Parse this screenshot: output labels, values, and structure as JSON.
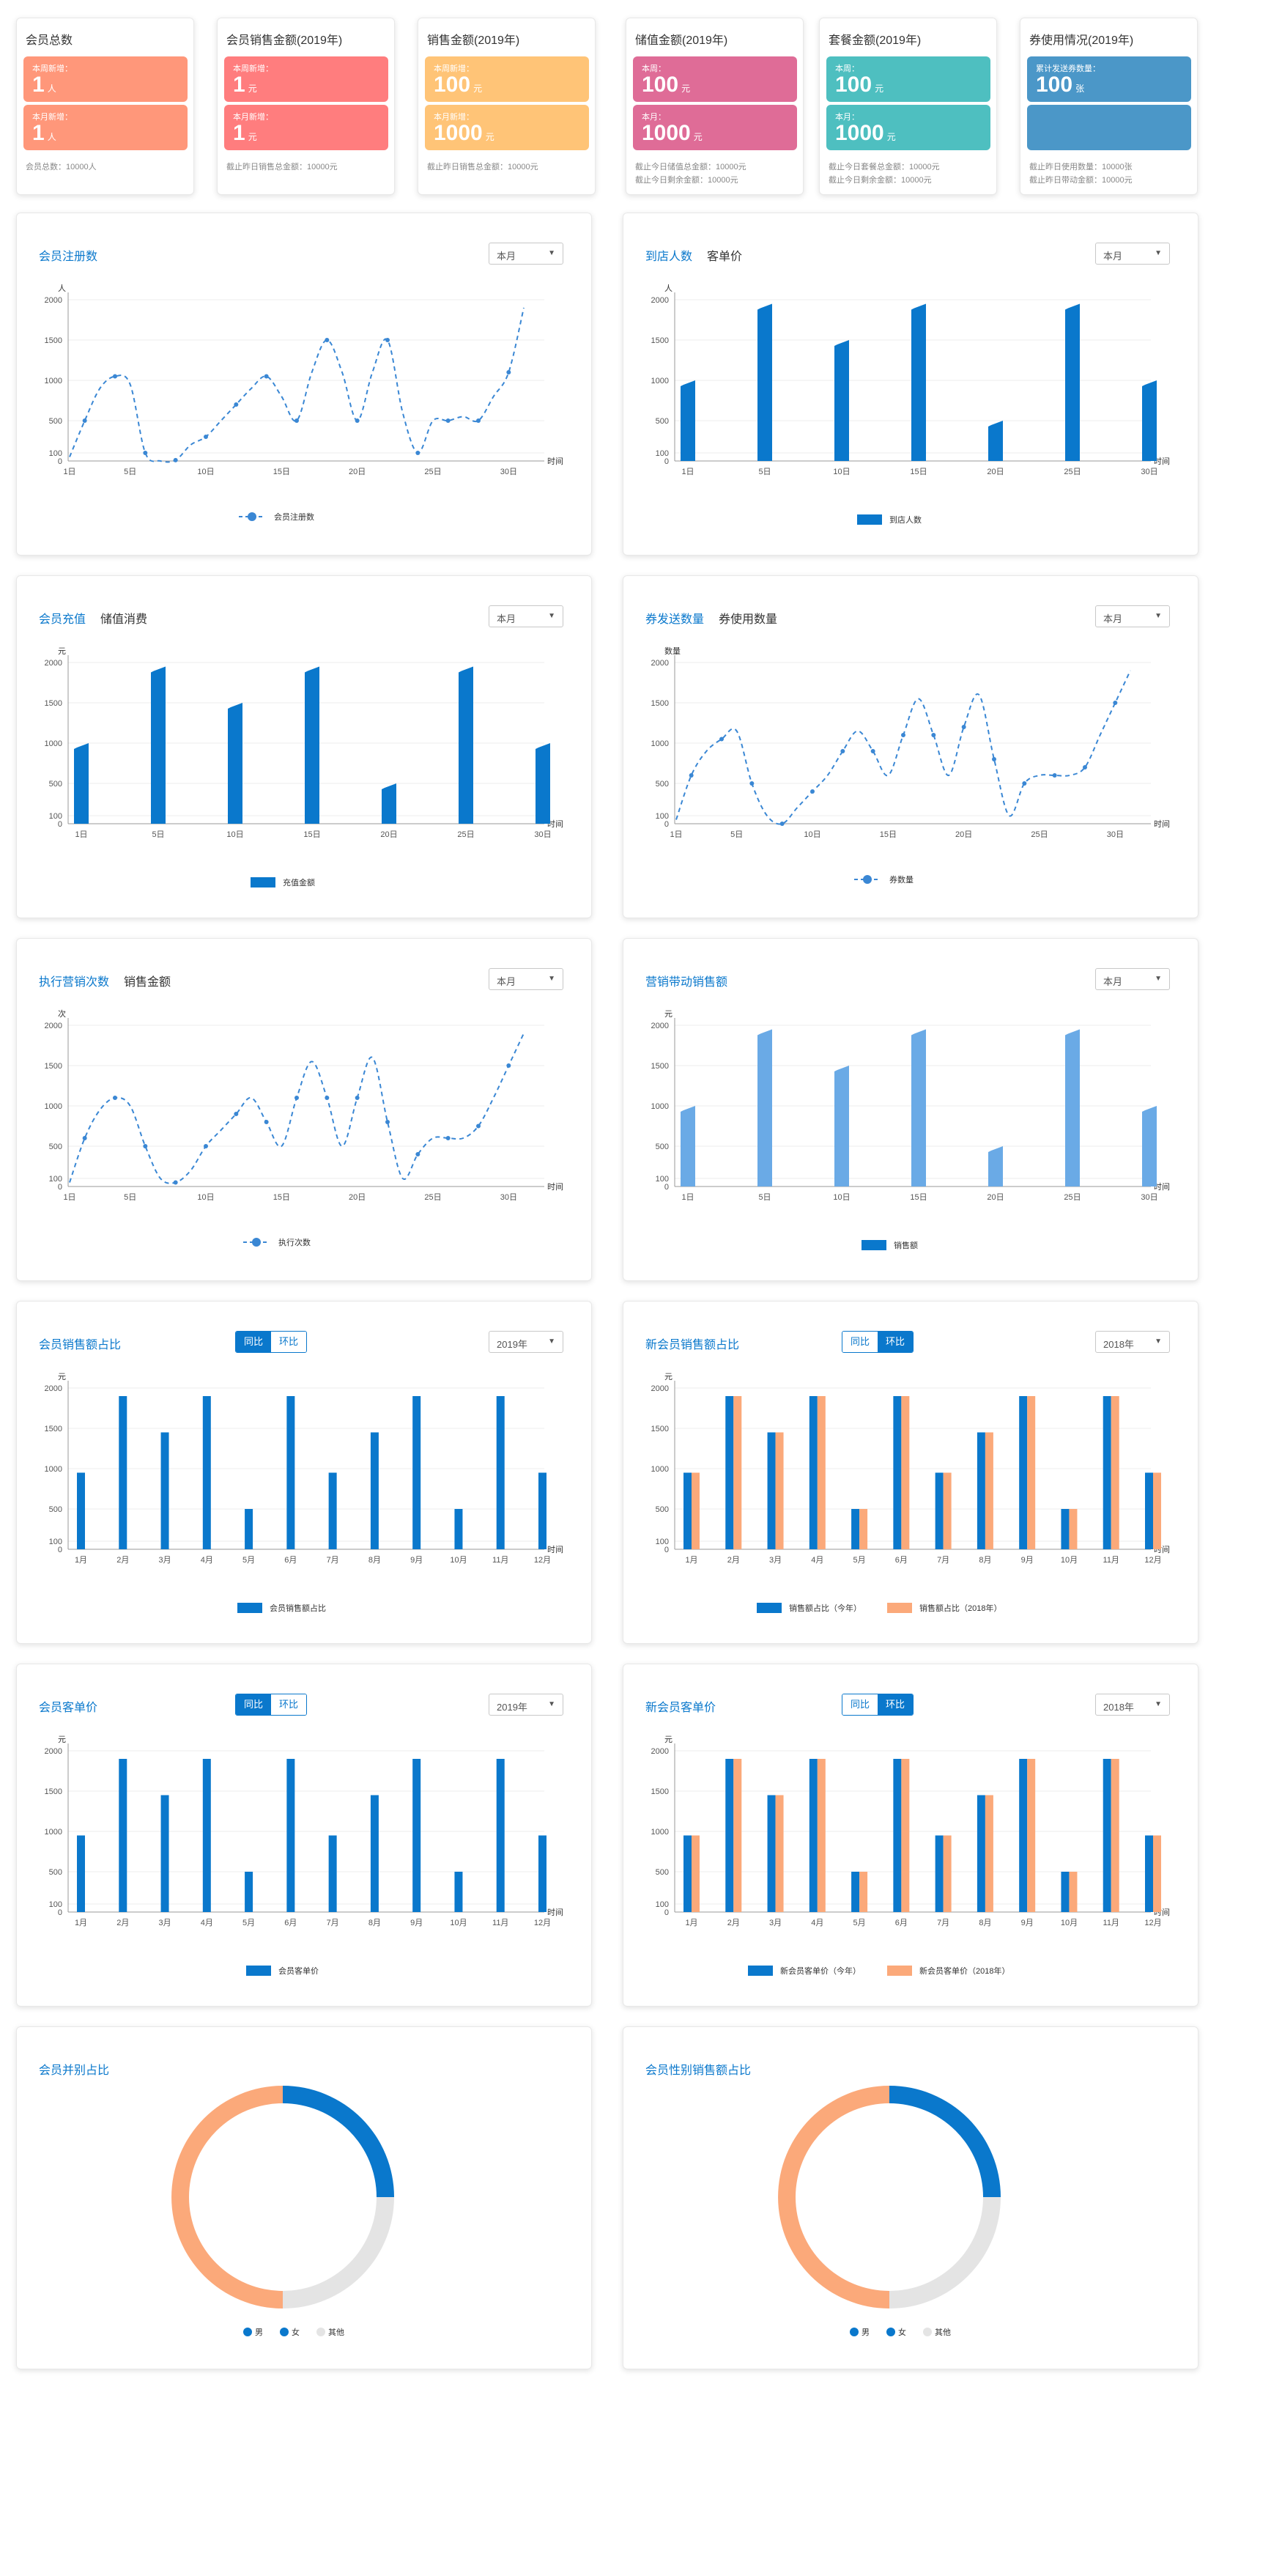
{
  "stats": [
    {
      "title": "会员总数",
      "boxes": [
        {
          "label": "本周新增：",
          "value": "1",
          "unit": "人"
        },
        {
          "label": "本月新增：",
          "value": "1",
          "unit": "人"
        }
      ],
      "footer": [
        "会员总数：10000人"
      ]
    },
    {
      "title": "会员销售金额(2019年)",
      "boxes": [
        {
          "label": "本周新增：",
          "value": "1",
          "unit": "元"
        },
        {
          "label": "本月新增：",
          "value": "1",
          "unit": "元"
        }
      ],
      "footer": [
        "截止昨日销售总金额：10000元"
      ]
    },
    {
      "title": "销售金额(2019年)",
      "boxes": [
        {
          "label": "本周新增：",
          "value": "100",
          "unit": "元"
        },
        {
          "label": "本月新增：",
          "value": "1000",
          "unit": "元"
        }
      ],
      "footer": [
        "截止昨日销售总金额：10000元"
      ]
    },
    {
      "title": "储值金额(2019年)",
      "boxes": [
        {
          "label": "本周：",
          "value": "100",
          "unit": "元"
        },
        {
          "label": "本月：",
          "value": "1000",
          "unit": "元"
        }
      ],
      "footer": [
        "截止今日储值总金额：10000元",
        "截止今日剩余金额：10000元"
      ]
    },
    {
      "title": "套餐金额(2019年)",
      "boxes": [
        {
          "label": "本周：",
          "value": "100",
          "unit": "元"
        },
        {
          "label": "本月：",
          "value": "1000",
          "unit": "元"
        }
      ],
      "footer": [
        "截止今日套餐总金额：10000元",
        "截止今日剩余金额：10000元"
      ]
    },
    {
      "title": "券使用情况(2019年)",
      "boxes": [
        {
          "label": "累计发送券数量：",
          "value": "100",
          "unit": "张"
        },
        {
          "label": "",
          "value": "",
          "unit": ""
        }
      ],
      "footer": [
        "截止昨日使用数量：10000张",
        "截止昨日带动金额：10000元"
      ]
    }
  ],
  "colors": {
    "primary": "#0a78cc",
    "secondary": "#fba97a",
    "line": "#3a87d4",
    "light_bar": "#6aaae6",
    "donut_other": "#e4e4e4"
  },
  "panels": [
    {
      "tabs": [
        "会员注册数"
      ],
      "dropdown": "本月",
      "chart_data": {
        "type": "line",
        "x": [
          "1日",
          "",
          "",
          "",
          "5日",
          "",
          "",
          "",
          "",
          "10日",
          "",
          "",
          "",
          "",
          "15日",
          "",
          "",
          "",
          "",
          "20日",
          "",
          "",
          "",
          "",
          "25日",
          "",
          "",
          "",
          "",
          "30日",
          ""
        ],
        "values": [
          50,
          500,
          900,
          1050,
          950,
          100,
          0,
          10,
          200,
          300,
          500,
          700,
          900,
          1050,
          800,
          500,
          1100,
          1500,
          1100,
          500,
          1100,
          1500,
          600,
          100,
          500,
          500,
          550,
          500,
          800,
          1100,
          1900
        ],
        "ylim": [
          0,
          2000
        ],
        "yticks": [
          0,
          100,
          500,
          1000,
          1500,
          2000
        ],
        "ylabel": "人",
        "xlabel": "时间",
        "legend": [
          "会员注册数"
        ]
      }
    },
    {
      "tabs": [
        "到店人数",
        "客单价"
      ],
      "dropdown": "本月",
      "chart_data": {
        "type": "bar",
        "x": [
          "1日",
          "5日",
          "10日",
          "15日",
          "20日",
          "25日",
          "30日"
        ],
        "values": [
          1000,
          1950,
          1500,
          1950,
          500,
          1950,
          1000
        ],
        "ylim": [
          0,
          2000
        ],
        "yticks": [
          0,
          100,
          500,
          1000,
          1500,
          2000
        ],
        "ylabel": "人",
        "xlabel": "时间",
        "legend": [
          "到店人数"
        ]
      }
    },
    {
      "tabs": [
        "会员充值",
        "储值消费"
      ],
      "dropdown": "本月",
      "chart_data": {
        "type": "bar",
        "x": [
          "1日",
          "5日",
          "10日",
          "15日",
          "20日",
          "25日",
          "30日"
        ],
        "values": [
          1000,
          1950,
          1500,
          1950,
          500,
          1950,
          1000
        ],
        "ylim": [
          0,
          2000
        ],
        "yticks": [
          0,
          100,
          500,
          1000,
          1500,
          2000
        ],
        "ylabel": "元",
        "xlabel": "时间",
        "legend": [
          "充值金额"
        ]
      }
    },
    {
      "tabs": [
        "券发送数量",
        "券使用数量"
      ],
      "dropdown": "本月",
      "chart_data": {
        "type": "line",
        "x": [
          "1日",
          "",
          "",
          "",
          "5日",
          "",
          "",
          "",
          "",
          "10日",
          "",
          "",
          "",
          "",
          "15日",
          "",
          "",
          "",
          "",
          "20日",
          "",
          "",
          "",
          "",
          "25日",
          "",
          "",
          "",
          "",
          "30日",
          ""
        ],
        "values": [
          50,
          600,
          900,
          1050,
          1150,
          500,
          100,
          0,
          200,
          400,
          600,
          900,
          1150,
          900,
          600,
          1100,
          1550,
          1100,
          600,
          1200,
          1600,
          800,
          100,
          500,
          600,
          600,
          600,
          700,
          1100,
          1500,
          1900
        ],
        "ylim": [
          0,
          2000
        ],
        "yticks": [
          0,
          100,
          500,
          1000,
          1500,
          2000
        ],
        "ylabel": "数量",
        "xlabel": "时间",
        "legend": [
          "券数量"
        ]
      }
    },
    {
      "tabs": [
        "执行营销次数",
        "销售金额"
      ],
      "dropdown": "本月",
      "chart_data": {
        "type": "line",
        "x": [
          "1日",
          "",
          "",
          "",
          "5日",
          "",
          "",
          "",
          "",
          "10日",
          "",
          "",
          "",
          "",
          "15日",
          "",
          "",
          "",
          "",
          "20日",
          "",
          "",
          "",
          "",
          "25日",
          "",
          "",
          "",
          "",
          "30日",
          ""
        ],
        "values": [
          50,
          600,
          950,
          1100,
          1000,
          500,
          100,
          50,
          200,
          500,
          700,
          900,
          1100,
          800,
          500,
          1100,
          1550,
          1100,
          500,
          1100,
          1600,
          800,
          100,
          400,
          600,
          600,
          600,
          750,
          1100,
          1500,
          1900
        ],
        "ylim": [
          0,
          2000
        ],
        "yticks": [
          0,
          100,
          500,
          1000,
          1500,
          2000
        ],
        "ylabel": "次",
        "xlabel": "时间",
        "legend": [
          "执行次数"
        ]
      }
    },
    {
      "tabs": [
        "营销带动销售额"
      ],
      "dropdown": "本月",
      "chart_data": {
        "type": "bar",
        "x": [
          "1日",
          "5日",
          "10日",
          "15日",
          "20日",
          "25日",
          "30日"
        ],
        "values": [
          1000,
          1950,
          1500,
          1950,
          500,
          1950,
          1000
        ],
        "ylim": [
          0,
          2000
        ],
        "yticks": [
          0,
          100,
          500,
          1000,
          1500,
          2000
        ],
        "ylabel": "元",
        "xlabel": "时间",
        "legend": [
          "销售额"
        ]
      }
    },
    {
      "tabs": [
        "会员销售额占比"
      ],
      "toggle": {
        "left": "同比",
        "right": "环比",
        "active": "left"
      },
      "dropdown": "2019年",
      "chart_data": {
        "type": "bar",
        "x": [
          "1月",
          "2月",
          "3月",
          "4月",
          "5月",
          "6月",
          "7月",
          "8月",
          "9月",
          "10月",
          "11月",
          "12月"
        ],
        "values": [
          950,
          1900,
          1450,
          1900,
          500,
          1900,
          950,
          1450,
          1900,
          500,
          1900,
          950
        ],
        "ylim": [
          0,
          2000
        ],
        "yticks": [
          0,
          100,
          500,
          1000,
          1500,
          2000
        ],
        "ylabel": "元",
        "xlabel": "时间",
        "legend": [
          "会员销售额占比"
        ]
      }
    },
    {
      "tabs": [
        "新会员销售额占比"
      ],
      "toggle": {
        "left": "同比",
        "right": "环比",
        "active": "right"
      },
      "dropdown": "2018年",
      "chart_data": {
        "type": "bar",
        "x": [
          "1月",
          "2月",
          "3月",
          "4月",
          "5月",
          "6月",
          "7月",
          "8月",
          "9月",
          "10月",
          "11月",
          "12月"
        ],
        "series": [
          {
            "name": "销售额占比（今年）",
            "values": [
              950,
              1900,
              1450,
              1900,
              500,
              1900,
              950,
              1450,
              1900,
              500,
              1900,
              950
            ]
          },
          {
            "name": "销售额占比（2018年）",
            "values": [
              950,
              1900,
              1450,
              1900,
              500,
              1900,
              950,
              1450,
              1900,
              500,
              1900,
              950
            ]
          }
        ],
        "ylim": [
          0,
          2000
        ],
        "yticks": [
          0,
          100,
          500,
          1000,
          1500,
          2000
        ],
        "ylabel": "元",
        "xlabel": "时间",
        "legend": [
          "销售额占比（今年）",
          "销售额占比（2018年）"
        ]
      }
    },
    {
      "tabs": [
        "会员客单价"
      ],
      "toggle": {
        "left": "同比",
        "right": "环比",
        "active": "left"
      },
      "dropdown": "2019年",
      "chart_data": {
        "type": "bar",
        "x": [
          "1月",
          "2月",
          "3月",
          "4月",
          "5月",
          "6月",
          "7月",
          "8月",
          "9月",
          "10月",
          "11月",
          "12月"
        ],
        "values": [
          950,
          1900,
          1450,
          1900,
          500,
          1900,
          950,
          1450,
          1900,
          500,
          1900,
          950
        ],
        "ylim": [
          0,
          2000
        ],
        "yticks": [
          0,
          100,
          500,
          1000,
          1500,
          2000
        ],
        "ylabel": "元",
        "xlabel": "时间",
        "legend": [
          "会员客单价"
        ]
      }
    },
    {
      "tabs": [
        "新会员客单价"
      ],
      "toggle": {
        "left": "同比",
        "right": "环比",
        "active": "right"
      },
      "dropdown": "2018年",
      "chart_data": {
        "type": "bar",
        "x": [
          "1月",
          "2月",
          "3月",
          "4月",
          "5月",
          "6月",
          "7月",
          "8月",
          "9月",
          "10月",
          "11月",
          "12月"
        ],
        "series": [
          {
            "name": "新会员客单价（今年）",
            "values": [
              950,
              1900,
              1450,
              1900,
              500,
              1900,
              950,
              1450,
              1900,
              500,
              1900,
              950
            ]
          },
          {
            "name": "新会员客单价（2018年）",
            "values": [
              950,
              1900,
              1450,
              1900,
              500,
              1900,
              950,
              1450,
              1900,
              500,
              1900,
              950
            ]
          }
        ],
        "ylim": [
          0,
          2000
        ],
        "yticks": [
          0,
          100,
          500,
          1000,
          1500,
          2000
        ],
        "ylabel": "元",
        "xlabel": "时间",
        "legend": [
          "新会员客单价（今年）",
          "新会员客单价（2018年）"
        ]
      }
    },
    {
      "tabs": [
        "会员并别占比"
      ],
      "chart_data": {
        "type": "pie",
        "donut": true,
        "labels": [
          "男",
          "女",
          "其他"
        ],
        "values": [
          25,
          50,
          25
        ]
      }
    },
    {
      "tabs": [
        "会员性别销售额占比"
      ],
      "chart_data": {
        "type": "pie",
        "donut": true,
        "labels": [
          "男",
          "女",
          "其他"
        ],
        "values": [
          25,
          50,
          25
        ]
      }
    }
  ]
}
